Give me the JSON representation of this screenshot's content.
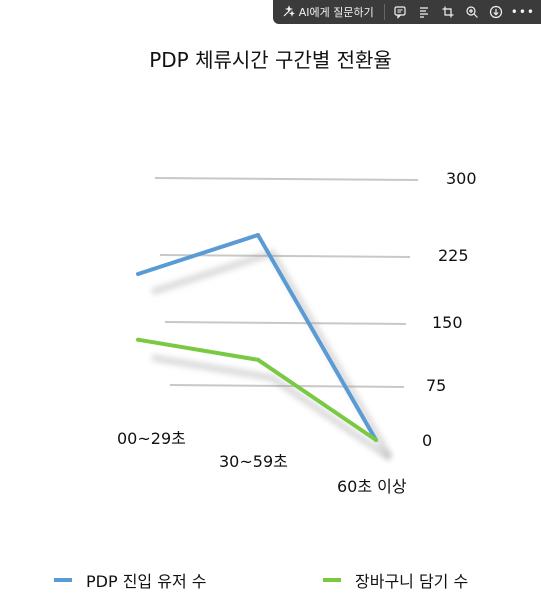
{
  "toolbar": {
    "ask_ai_label": "AI에게 질문하기",
    "icons": [
      "sparkle-icon",
      "comment-icon",
      "summary-icon",
      "crop-icon",
      "zoom-icon",
      "download-icon",
      "more-icon"
    ]
  },
  "chart_data": {
    "type": "line",
    "title": "PDP 체류시간 구간별 전환율",
    "categories": [
      "00~29초",
      "30~59초",
      "60초 이상"
    ],
    "series": [
      {
        "name": "PDP 진입 유저 수",
        "values": [
          200,
          250,
          0
        ],
        "color": "#5b9bd5"
      },
      {
        "name": "장바구니 담기 수",
        "values": [
          110,
          90,
          0
        ],
        "color": "#7ac943"
      }
    ],
    "y_ticks": [
      "0",
      "75",
      "150",
      "225",
      "300"
    ],
    "ylim": [
      0,
      300
    ],
    "grid": true,
    "legend_position": "bottom",
    "style": "3d-perspective"
  }
}
